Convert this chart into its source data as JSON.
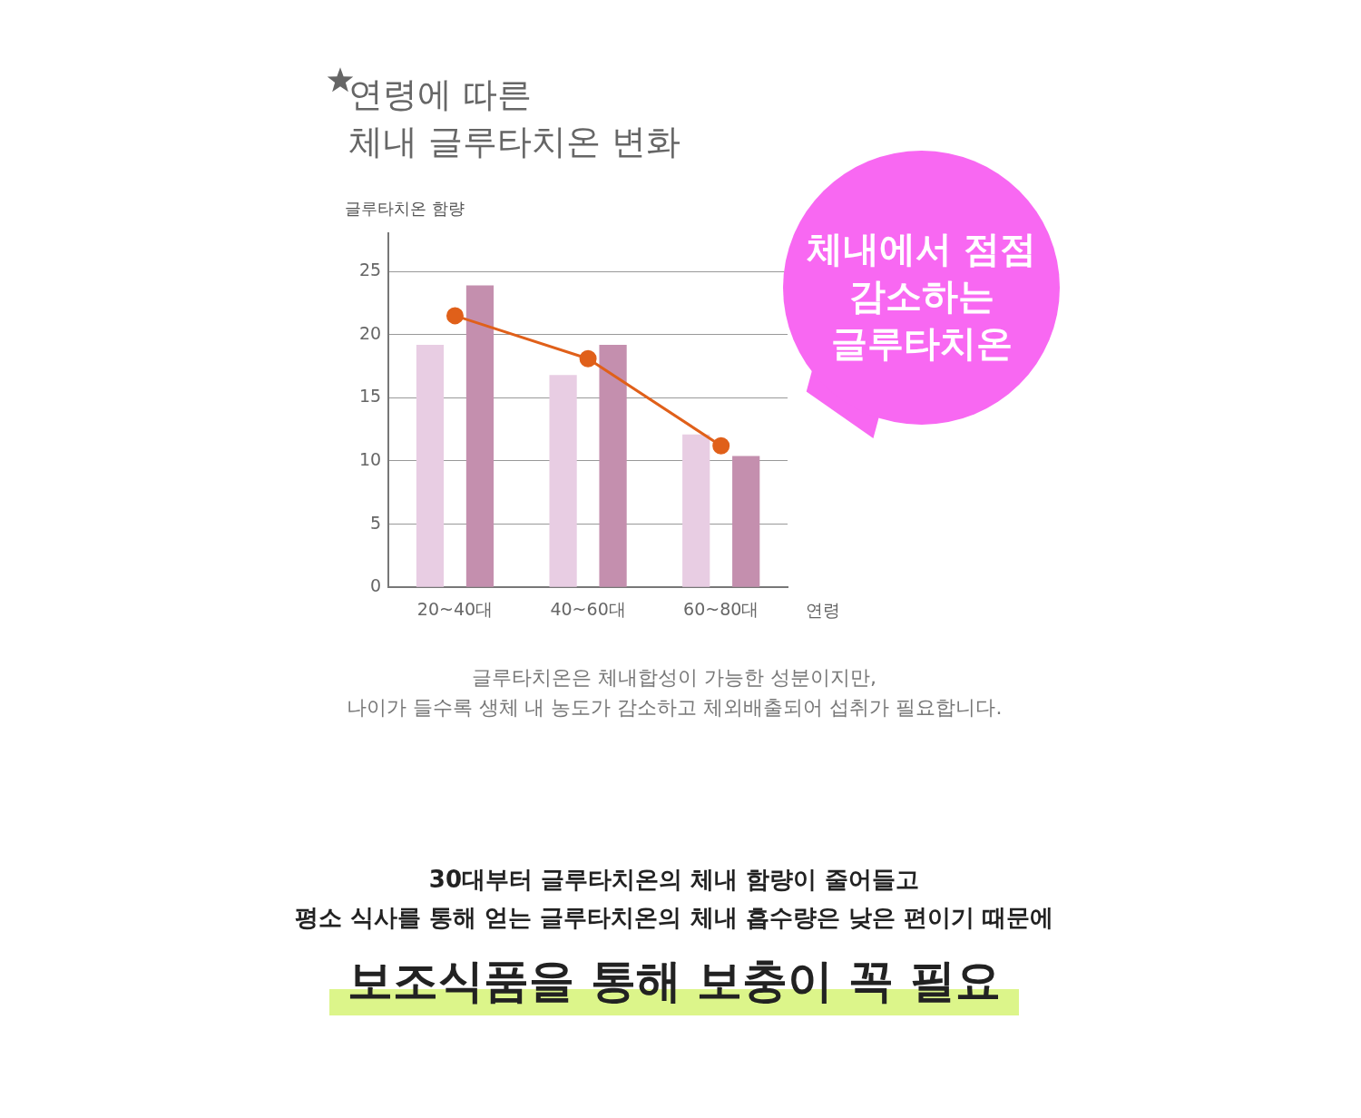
{
  "chart_data": {
    "type": "bar",
    "title": "연령에 따른\n체내 글루타치온 변화",
    "xlabel": "연령",
    "ylabel": "글루타치온 함량",
    "categories": [
      "20~40대",
      "40~60대",
      "60~80대"
    ],
    "series": [
      {
        "color": "#e8cde3",
        "values": [
          19.2,
          16.8,
          12.1
        ]
      },
      {
        "color": "#c48fae",
        "values": [
          23.9,
          19.2,
          10.4
        ]
      },
      {
        "type": "line",
        "color": "#e0601a",
        "values": [
          21.5,
          18.1,
          11.2
        ]
      }
    ],
    "ylim": [
      0,
      28
    ],
    "yticks": [
      0,
      5,
      10,
      15,
      20,
      25
    ],
    "grid": "y",
    "legend": false,
    "marker": "circle",
    "annotations": [
      "체내에서 점점\n감소하는\n글루타치온",
      "글루타치온은 체내합성이 가능한 성분이지만,\n나이가 들수록 생체 내 농도가 감소하고 체외배출되어 섭취가 필요합니다.",
      "30대부터 글루타치온의 체내 함량이 줄어들고\n평소 식사를 통해 얻는 글루타치온의 체내 흡수량은 낮은 편이기 때문에",
      "보조식품을 통해 보충이 꼭 필요"
    ]
  }
}
